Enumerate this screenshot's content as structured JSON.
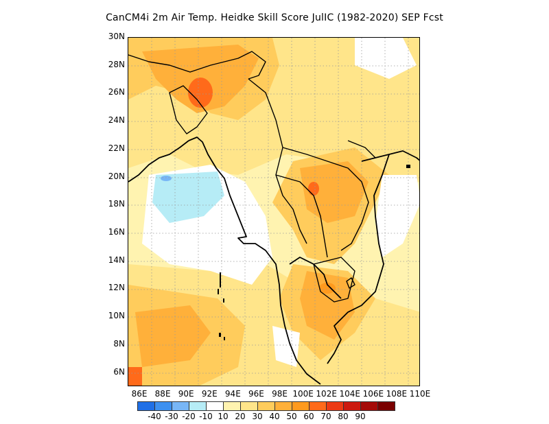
{
  "title": "CanCM4i  2m Air Temp. Heidke Skill Score JulIC (1982-2020) SEP Fcst",
  "lat_labels": [
    "30N",
    "28N",
    "26N",
    "24N",
    "22N",
    "20N",
    "18N",
    "16N",
    "14N",
    "12N",
    "10N",
    "8N",
    "6N"
  ],
  "lon_labels": [
    "86E",
    "88E",
    "90E",
    "92E",
    "94E",
    "96E",
    "98E",
    "100E",
    "102E",
    "104E",
    "106E",
    "108E",
    "110E"
  ],
  "colorbar": {
    "colors": [
      "#1f6fe6",
      "#3d90f0",
      "#78b6f6",
      "#b6ecf6",
      "#ffffff",
      "#fff3b0",
      "#ffe58a",
      "#ffcc5c",
      "#ffb03a",
      "#ff9a1e",
      "#ff6a1a",
      "#ec3a14",
      "#cc1a0f",
      "#a50a08",
      "#7a0000"
    ],
    "labels": [
      "-40",
      "-30",
      "-20",
      "-10",
      "10",
      "20",
      "30",
      "40",
      "50",
      "60",
      "70",
      "80",
      "90"
    ]
  },
  "map": {
    "region": {
      "lon_min": 85,
      "lon_max": 110,
      "lat_min": 5,
      "lat_max": 30
    },
    "grid": true,
    "variable": "Heidke Skill Score"
  }
}
